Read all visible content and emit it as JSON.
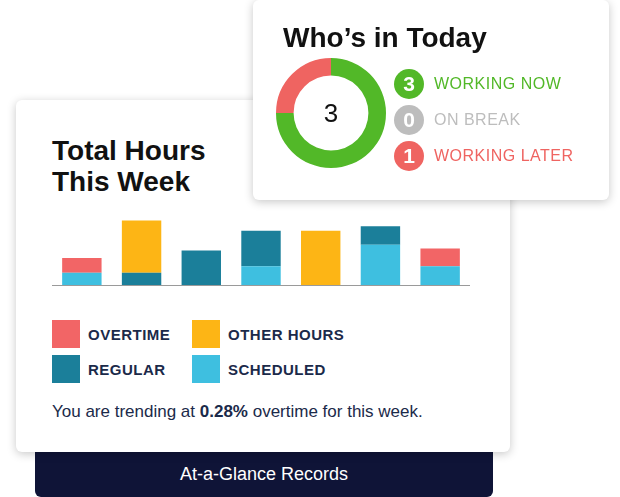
{
  "chart_data": [
    {
      "type": "bar",
      "title": "Total Hours This Week",
      "categories": [
        null,
        null,
        null,
        null,
        null,
        null,
        null
      ],
      "series": [
        {
          "name": "OVERTIME",
          "color": "#f26566",
          "values": [
            3.2,
            0,
            0,
            0,
            0,
            0,
            3.8
          ]
        },
        {
          "name": "OTHER HOURS",
          "color": "#fdb515",
          "values": [
            0,
            11.2,
            0,
            0,
            11.6,
            0,
            0
          ]
        },
        {
          "name": "REGULAR",
          "color": "#1b7f9a",
          "values": [
            0,
            2.6,
            7.4,
            7.6,
            0,
            4,
            0
          ]
        },
        {
          "name": "SCHEDULED",
          "color": "#3ebfe0",
          "values": [
            2.6,
            0,
            0,
            4,
            0,
            8.6,
            4
          ]
        }
      ],
      "stacked": true,
      "ylim": [
        0,
        15
      ],
      "grid": false,
      "tick_labels": false,
      "legend": "bottom"
    },
    {
      "type": "doughnut",
      "title": "Who’s in Today",
      "series": [
        {
          "name": "WORKING NOW",
          "color": "#52b828",
          "values": [
            3
          ]
        },
        {
          "name": "ON BREAK",
          "color": "#bdbdbd",
          "values": [
            0
          ]
        },
        {
          "name": "WORKING LATER",
          "color": "#ef6461",
          "values": [
            1
          ]
        }
      ],
      "legend": "right",
      "data_labels": true
    }
  ],
  "summary": {
    "before": "You are trending at",
    "overtime_percent": {
      "value": 0.28,
      "label": "0.28%"
    },
    "after": "overtime for this week."
  },
  "banner": "At-a-Glance Records"
}
